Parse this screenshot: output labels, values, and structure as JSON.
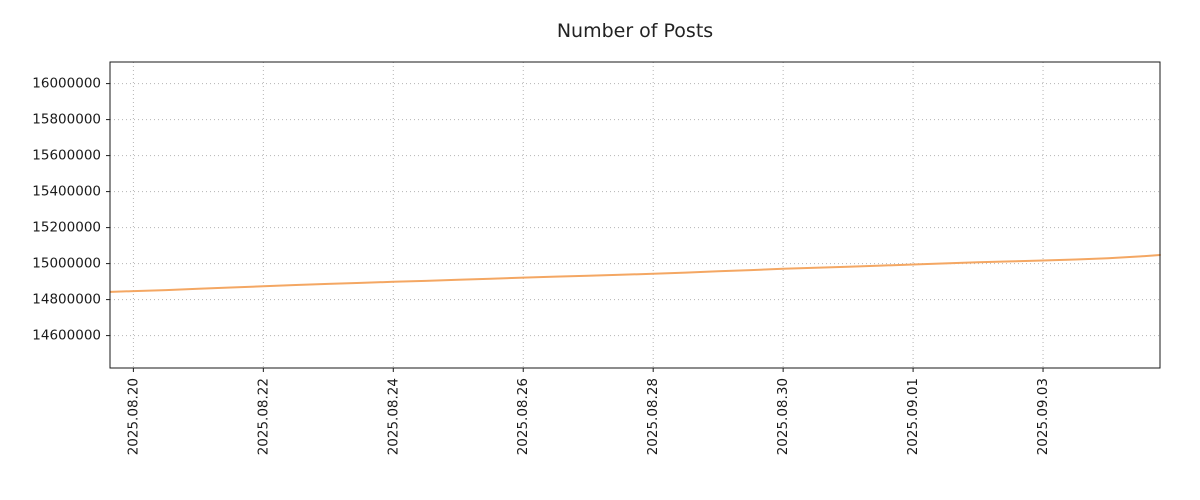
{
  "page": {
    "background": "#ffffff"
  },
  "chart_data": {
    "type": "line",
    "title": "Number of Posts",
    "xlabel": "",
    "ylabel": "",
    "legend": "none",
    "grid": {
      "visible": true,
      "style": "dotted",
      "color": "#b4b4b4"
    },
    "colors": {
      "line": "#f4a763",
      "axis": "#1a1a1a",
      "text": "#1a1a1a"
    },
    "x_axis": {
      "unit": "day offset within August 2025 (values > 31 roll into September)",
      "xlim": [
        19.64,
        35.8
      ],
      "ticks": [
        {
          "pos": 20,
          "label": "2025.08.20"
        },
        {
          "pos": 22,
          "label": "2025.08.22"
        },
        {
          "pos": 24,
          "label": "2025.08.24"
        },
        {
          "pos": 26,
          "label": "2025.08.26"
        },
        {
          "pos": 28,
          "label": "2025.08.28"
        },
        {
          "pos": 30,
          "label": "2025.08.30"
        },
        {
          "pos": 32,
          "label": "2025.09.01"
        },
        {
          "pos": 34,
          "label": "2025.09.03"
        }
      ]
    },
    "y_axis": {
      "ylim": [
        14420000,
        16120000
      ],
      "ticks": [
        {
          "value": 14600000,
          "label": "14600000"
        },
        {
          "value": 14800000,
          "label": "14800000"
        },
        {
          "value": 15000000,
          "label": "15000000"
        },
        {
          "value": 15200000,
          "label": "15200000"
        },
        {
          "value": 15400000,
          "label": "15400000"
        },
        {
          "value": 15600000,
          "label": "15600000"
        },
        {
          "value": 15800000,
          "label": "15800000"
        },
        {
          "value": 16000000,
          "label": "16000000"
        }
      ]
    },
    "series": [
      {
        "name": "Number of Posts",
        "points": [
          [
            19.65,
            14843000
          ],
          [
            20.0,
            14847000
          ],
          [
            20.5,
            14853000
          ],
          [
            21.0,
            14860000
          ],
          [
            21.5,
            14867000
          ],
          [
            22.0,
            14874000
          ],
          [
            22.5,
            14881000
          ],
          [
            23.0,
            14887000
          ],
          [
            23.5,
            14893000
          ],
          [
            24.0,
            14899000
          ],
          [
            24.5,
            14904000
          ],
          [
            25.0,
            14910000
          ],
          [
            25.5,
            14916000
          ],
          [
            26.0,
            14922000
          ],
          [
            26.5,
            14928000
          ],
          [
            27.0,
            14933000
          ],
          [
            27.5,
            14938000
          ],
          [
            28.0,
            14944000
          ],
          [
            28.5,
            14950000
          ],
          [
            29.0,
            14957000
          ],
          [
            29.5,
            14964000
          ],
          [
            30.0,
            14971000
          ],
          [
            30.5,
            14977000
          ],
          [
            31.0,
            14983000
          ],
          [
            31.5,
            14989000
          ],
          [
            32.0,
            14995000
          ],
          [
            32.5,
            15001000
          ],
          [
            33.0,
            15007000
          ],
          [
            33.5,
            15012000
          ],
          [
            34.0,
            15017000
          ],
          [
            34.5,
            15023000
          ],
          [
            35.0,
            15030000
          ],
          [
            35.5,
            15040000
          ],
          [
            35.8,
            15048000
          ]
        ]
      }
    ]
  }
}
